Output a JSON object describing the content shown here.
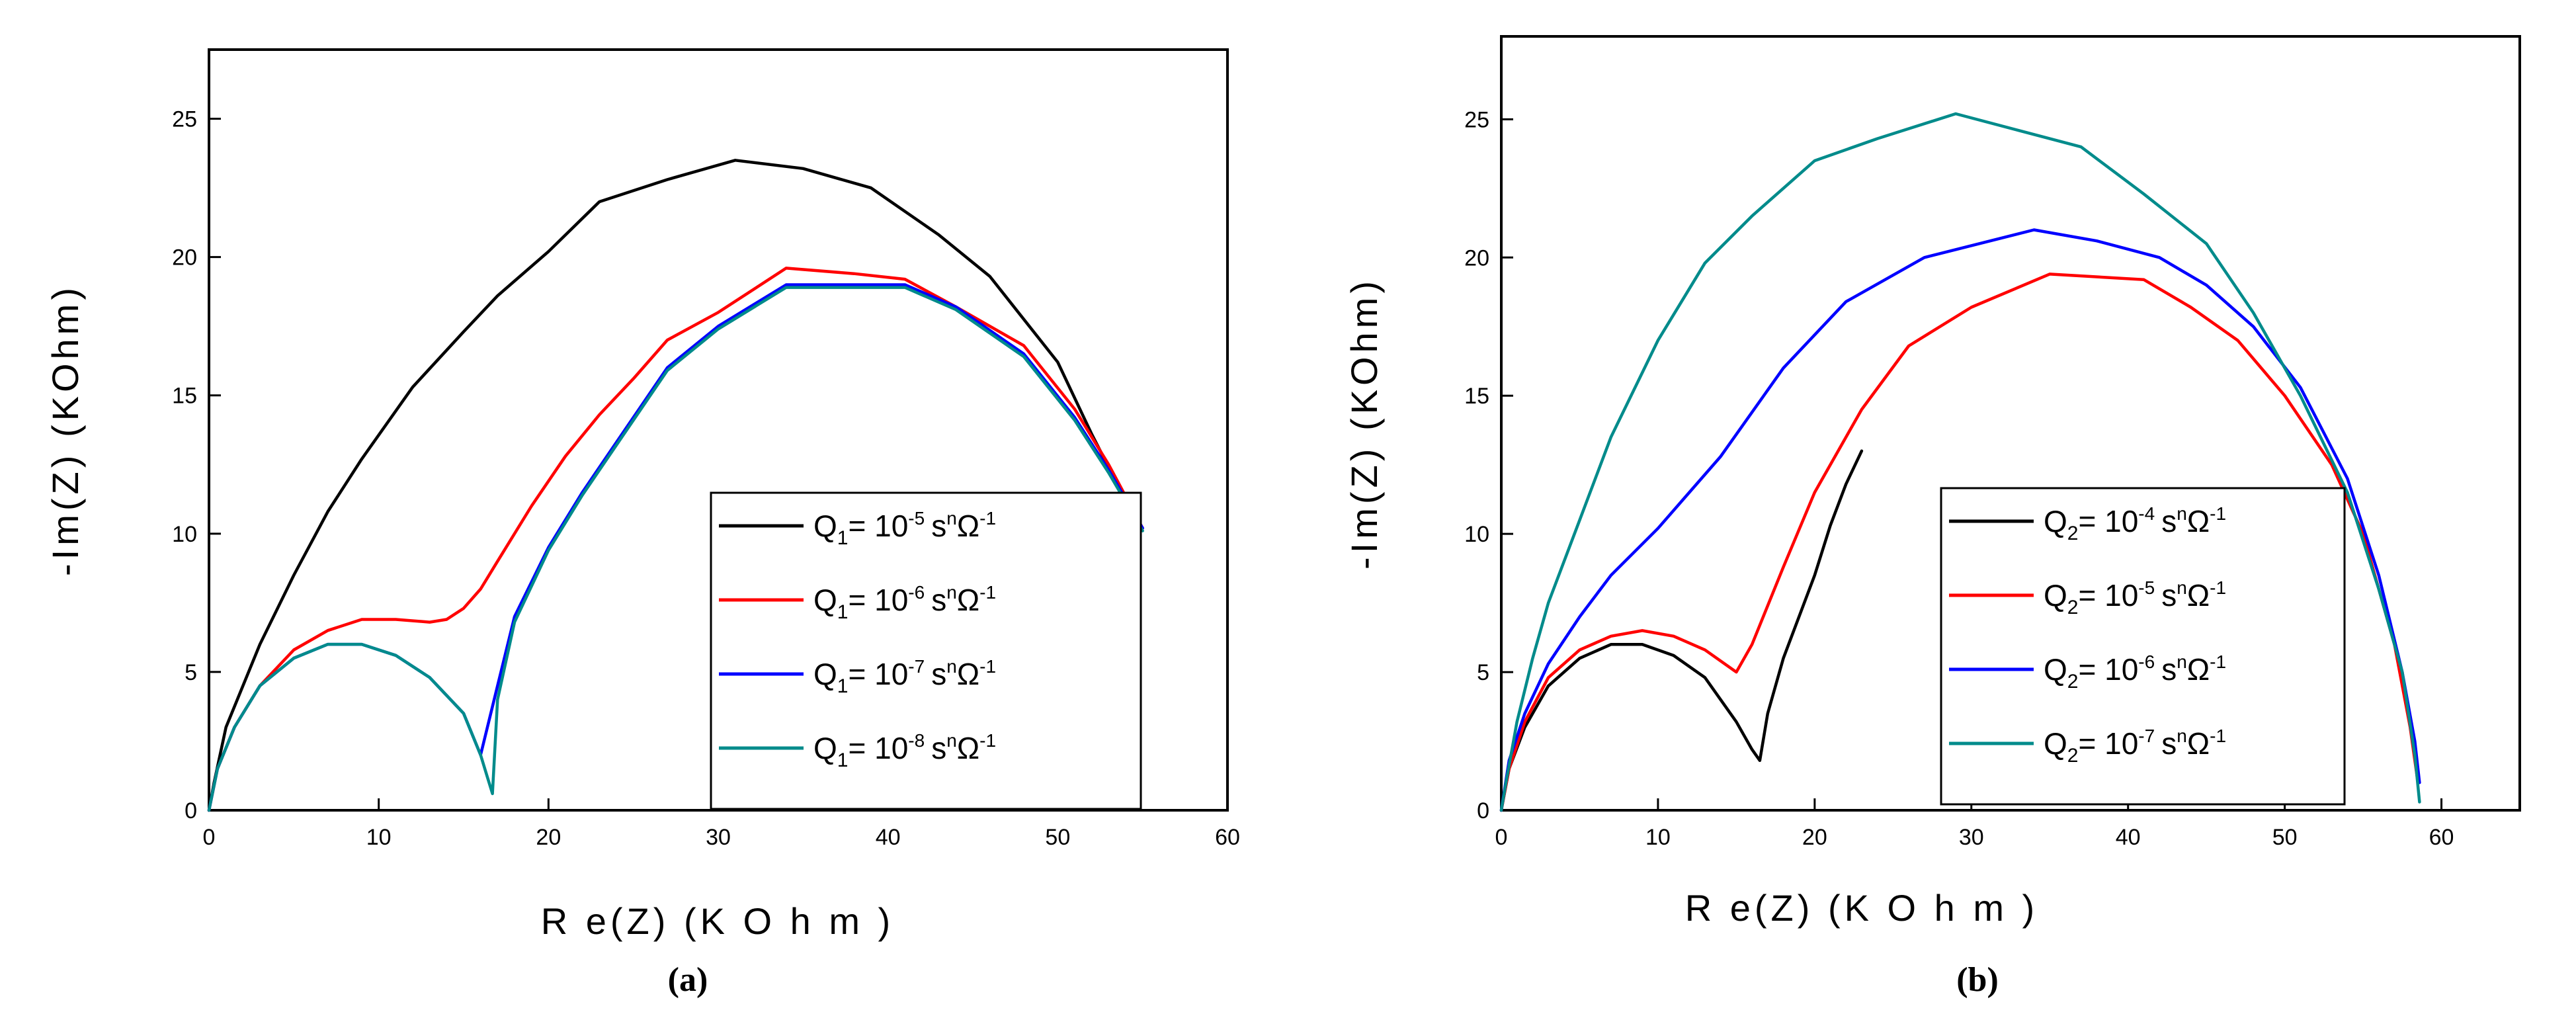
{
  "chart_data": [
    {
      "type": "line",
      "caption": "(a)",
      "xlabel": "R e(Z)  (K O h m )",
      "ylabel": "-Im(Z)  (KOhm)",
      "xlim": [
        0,
        60
      ],
      "ylim": [
        0,
        27.5
      ],
      "xticks": [
        0,
        10,
        20,
        30,
        40,
        50,
        60
      ],
      "yticks": [
        0,
        5,
        10,
        15,
        20,
        25
      ],
      "legend_position": "lower-right",
      "series": [
        {
          "name": "Q1 = 10^-5 s^n Ω^-1",
          "sym": "Q",
          "sub": "1",
          "exp": "-5",
          "color": "#000000",
          "points": [
            [
              0,
              0
            ],
            [
              0.3,
              1
            ],
            [
              1,
              3
            ],
            [
              3,
              6
            ],
            [
              5,
              8.5
            ],
            [
              7,
              10.8
            ],
            [
              9,
              12.7
            ],
            [
              12,
              15.3
            ],
            [
              15,
              17.3
            ],
            [
              17,
              18.6
            ],
            [
              20,
              20.2
            ],
            [
              23,
              22
            ],
            [
              27,
              22.8
            ],
            [
              31,
              23.5
            ],
            [
              35,
              23.2
            ],
            [
              39,
              22.5
            ],
            [
              43,
              20.8
            ],
            [
              46,
              19.3
            ],
            [
              50,
              16.2
            ],
            [
              52,
              13.6
            ],
            [
              54,
              11.2
            ],
            [
              55,
              10.2
            ]
          ]
        },
        {
          "name": "Q1 = 10^-6 s^n Ω^-1",
          "sym": "Q",
          "sub": "1",
          "exp": "-6",
          "color": "#ff0000",
          "points": [
            [
              0,
              0
            ],
            [
              0.5,
              1.5
            ],
            [
              1.5,
              3
            ],
            [
              3,
              4.5
            ],
            [
              5,
              5.8
            ],
            [
              7,
              6.5
            ],
            [
              9,
              6.9
            ],
            [
              11,
              6.9
            ],
            [
              13,
              6.8
            ],
            [
              14,
              6.9
            ],
            [
              15,
              7.3
            ],
            [
              16,
              8
            ],
            [
              17,
              9
            ],
            [
              19,
              11
            ],
            [
              21,
              12.8
            ],
            [
              23,
              14.3
            ],
            [
              25,
              15.6
            ],
            [
              27,
              17
            ],
            [
              30,
              18
            ],
            [
              34,
              19.6
            ],
            [
              38,
              19.4
            ],
            [
              41,
              19.2
            ],
            [
              44,
              18.2
            ],
            [
              48,
              16.8
            ],
            [
              51,
              14.5
            ],
            [
              53,
              12.5
            ],
            [
              55,
              10.2
            ]
          ]
        },
        {
          "name": "Q1 = 10^-7 s^n Ω^-1",
          "sym": "Q",
          "sub": "1",
          "exp": "-7",
          "color": "#0000ff",
          "points": [
            [
              0,
              0
            ],
            [
              0.5,
              1.5
            ],
            [
              1.5,
              3
            ],
            [
              3,
              4.5
            ],
            [
              5,
              5.5
            ],
            [
              7,
              6
            ],
            [
              9,
              6
            ],
            [
              11,
              5.6
            ],
            [
              13,
              4.8
            ],
            [
              15,
              3.5
            ],
            [
              16,
              2
            ],
            [
              17,
              4.5
            ],
            [
              18,
              7
            ],
            [
              20,
              9.5
            ],
            [
              22,
              11.5
            ],
            [
              24,
              13.3
            ],
            [
              27,
              16
            ],
            [
              30,
              17.5
            ],
            [
              34,
              19
            ],
            [
              37,
              19
            ],
            [
              41,
              19
            ],
            [
              44,
              18.2
            ],
            [
              48,
              16.5
            ],
            [
              51,
              14.2
            ],
            [
              53,
              12.3
            ],
            [
              55,
              10.2
            ]
          ]
        },
        {
          "name": "Q1 = 10^-8 s^n Ω^-1",
          "sym": "Q",
          "sub": "1",
          "exp": "-8",
          "color": "#008b8b",
          "points": [
            [
              0,
              0
            ],
            [
              0.5,
              1.5
            ],
            [
              1.5,
              3
            ],
            [
              3,
              4.5
            ],
            [
              5,
              5.5
            ],
            [
              7,
              6
            ],
            [
              9,
              6
            ],
            [
              11,
              5.6
            ],
            [
              13,
              4.8
            ],
            [
              15,
              3.5
            ],
            [
              16,
              2
            ],
            [
              16.4,
              1.2
            ],
            [
              16.7,
              0.6
            ],
            [
              17,
              4
            ],
            [
              18,
              6.8
            ],
            [
              20,
              9.4
            ],
            [
              22,
              11.4
            ],
            [
              24,
              13.2
            ],
            [
              27,
              15.9
            ],
            [
              30,
              17.4
            ],
            [
              34,
              18.9
            ],
            [
              37,
              18.9
            ],
            [
              41,
              18.9
            ],
            [
              44,
              18.1
            ],
            [
              48,
              16.4
            ],
            [
              51,
              14.1
            ],
            [
              53,
              12.2
            ],
            [
              55,
              10.1
            ]
          ]
        }
      ]
    },
    {
      "type": "line",
      "caption": "(b)",
      "xlabel": "R e(Z)  (K O h m )",
      "ylabel": "-Im(Z)  (KOhm)",
      "xlim": [
        0,
        65
      ],
      "ylim": [
        0,
        28
      ],
      "xticks": [
        0,
        10,
        20,
        30,
        40,
        50,
        60
      ],
      "yticks": [
        0,
        5,
        10,
        15,
        20,
        25
      ],
      "legend_position": "lower-center",
      "series": [
        {
          "name": "Q2 = 10^-4 s^n Ω^-1",
          "sym": "Q",
          "sub": "2",
          "exp": "-4",
          "color": "#000000",
          "points": [
            [
              0,
              0
            ],
            [
              0.5,
              1.5
            ],
            [
              1.5,
              3
            ],
            [
              3,
              4.5
            ],
            [
              5,
              5.5
            ],
            [
              7,
              6
            ],
            [
              9,
              6
            ],
            [
              11,
              5.6
            ],
            [
              13,
              4.8
            ],
            [
              15,
              3.2
            ],
            [
              16,
              2.2
            ],
            [
              16.5,
              1.8
            ],
            [
              17,
              3.5
            ],
            [
              18,
              5.5
            ],
            [
              20,
              8.5
            ],
            [
              21,
              10.3
            ],
            [
              22,
              11.8
            ],
            [
              23,
              13
            ]
          ]
        },
        {
          "name": "Q2 = 10^-5 s^n Ω^-1",
          "sym": "Q",
          "sub": "2",
          "exp": "-5",
          "color": "#ff0000",
          "points": [
            [
              0,
              0
            ],
            [
              0.5,
              1.5
            ],
            [
              1.5,
              3.2
            ],
            [
              3,
              4.8
            ],
            [
              5,
              5.8
            ],
            [
              7,
              6.3
            ],
            [
              9,
              6.5
            ],
            [
              11,
              6.3
            ],
            [
              13,
              5.8
            ],
            [
              15,
              5
            ],
            [
              16,
              6
            ],
            [
              18,
              8.8
            ],
            [
              20,
              11.5
            ],
            [
              23,
              14.5
            ],
            [
              26,
              16.8
            ],
            [
              30,
              18.2
            ],
            [
              35,
              19.4
            ],
            [
              41,
              19.2
            ],
            [
              44,
              18.2
            ],
            [
              47,
              17
            ],
            [
              50,
              15
            ],
            [
              53,
              12.5
            ],
            [
              55,
              10
            ],
            [
              57,
              6
            ],
            [
              58,
              3
            ],
            [
              58.5,
              1
            ]
          ]
        },
        {
          "name": "Q2 = 10^-6 s^n Ω^-1",
          "sym": "Q",
          "sub": "2",
          "exp": "-6",
          "color": "#0000ff",
          "points": [
            [
              0,
              0
            ],
            [
              0.5,
              1.8
            ],
            [
              1.5,
              3.5
            ],
            [
              3,
              5.3
            ],
            [
              5,
              7
            ],
            [
              7,
              8.5
            ],
            [
              10,
              10.2
            ],
            [
              14,
              12.8
            ],
            [
              18,
              16
            ],
            [
              22,
              18.4
            ],
            [
              27,
              20
            ],
            [
              34,
              21
            ],
            [
              38,
              20.6
            ],
            [
              42,
              20
            ],
            [
              45,
              19
            ],
            [
              48,
              17.5
            ],
            [
              51,
              15.3
            ],
            [
              54,
              12
            ],
            [
              56,
              8.5
            ],
            [
              57.5,
              5
            ],
            [
              58.3,
              2.5
            ],
            [
              58.6,
              1
            ]
          ]
        },
        {
          "name": "Q2 = 10^-7 s^n Ω^-1",
          "sym": "Q",
          "sub": "2",
          "exp": "-7",
          "color": "#008b8b",
          "points": [
            [
              0,
              0
            ],
            [
              0.3,
              1
            ],
            [
              1,
              3.2
            ],
            [
              2,
              5.5
            ],
            [
              3,
              7.5
            ],
            [
              5,
              10.5
            ],
            [
              7,
              13.5
            ],
            [
              10,
              17
            ],
            [
              13,
              19.8
            ],
            [
              16,
              21.5
            ],
            [
              20,
              23.5
            ],
            [
              24,
              24.3
            ],
            [
              29,
              25.2
            ],
            [
              33,
              24.6
            ],
            [
              37,
              24
            ],
            [
              41,
              22.3
            ],
            [
              45,
              20.5
            ],
            [
              48,
              18
            ],
            [
              51,
              15
            ],
            [
              54,
              11.5
            ],
            [
              56,
              8
            ],
            [
              57.5,
              5
            ],
            [
              58.3,
              2
            ],
            [
              58.6,
              0.3
            ]
          ]
        }
      ]
    }
  ]
}
